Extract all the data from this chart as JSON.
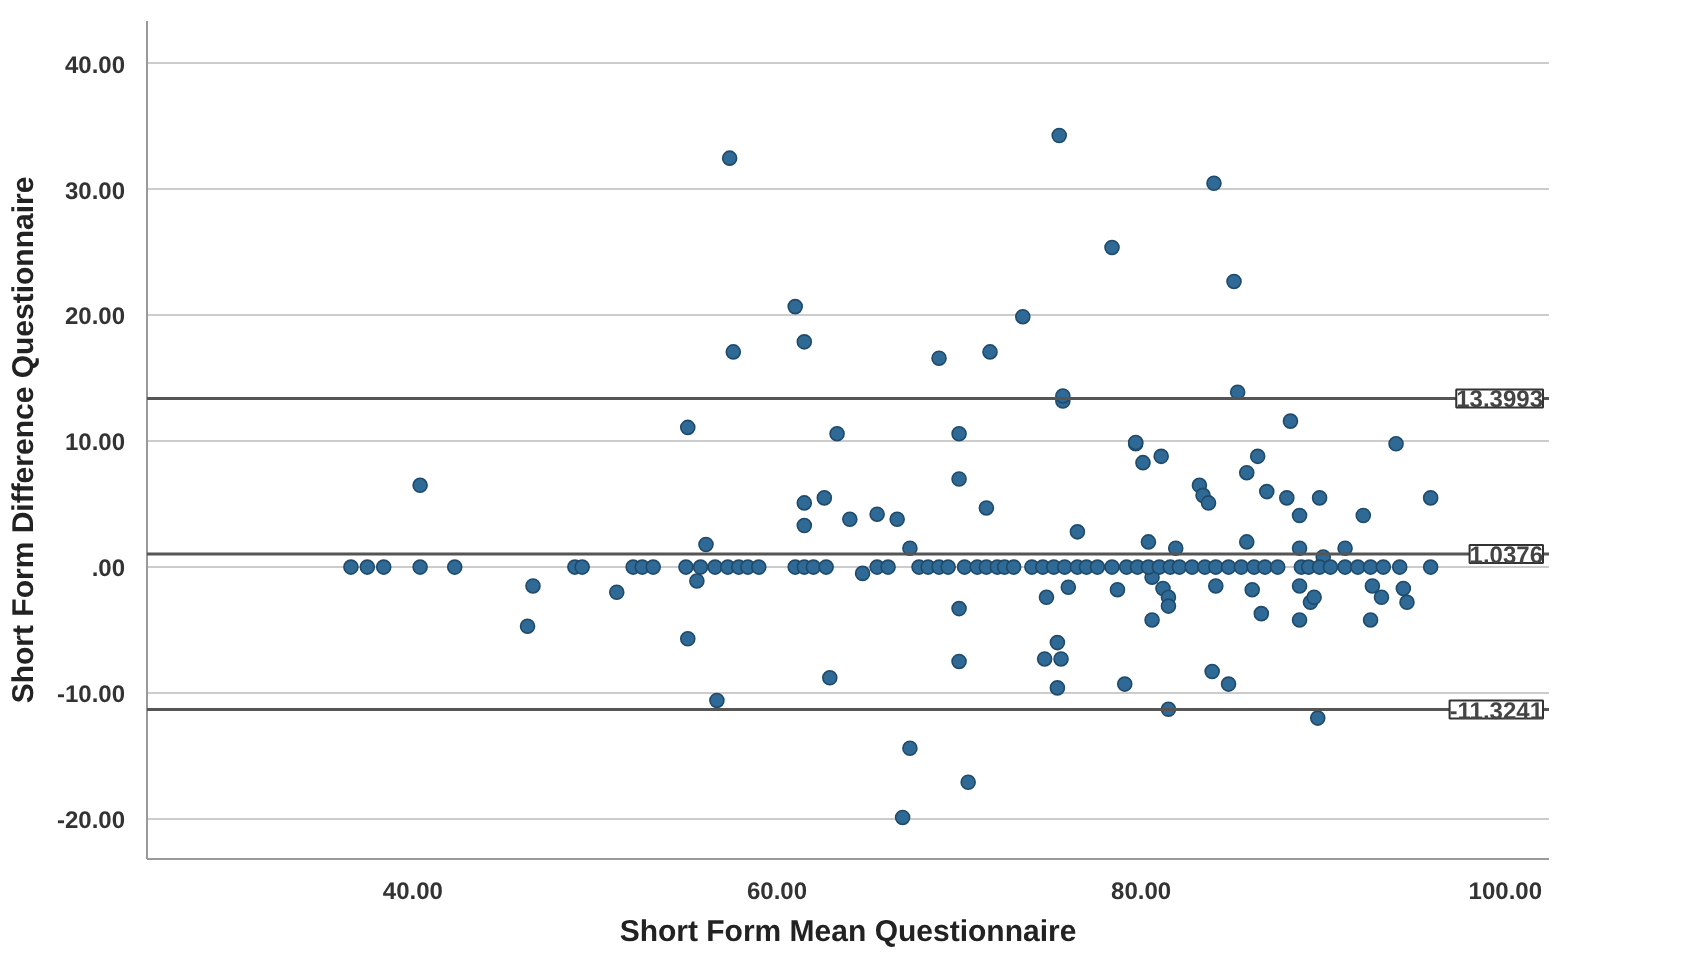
{
  "chart_data": {
    "type": "scatter",
    "xlabel": "Short Form Mean Questionnaire",
    "ylabel": "Short Form Difference Questionnaire",
    "xlim": [
      25.4,
      102.4
    ],
    "ylim": [
      -23.2,
      43.4
    ],
    "xticks": [
      {
        "value": 40,
        "label": "40.00"
      },
      {
        "value": 60,
        "label": "60.00"
      },
      {
        "value": 80,
        "label": "80.00"
      },
      {
        "value": 100,
        "label": "100.00"
      }
    ],
    "yticks": [
      {
        "value": -20,
        "label": "-20.00"
      },
      {
        "value": -10,
        "label": "-10.00"
      },
      {
        "value": 0,
        "label": ".00"
      },
      {
        "value": 10,
        "label": "10.00"
      },
      {
        "value": 20,
        "label": "20.00"
      },
      {
        "value": 30,
        "label": "30.00"
      },
      {
        "value": 40,
        "label": "40.00"
      }
    ],
    "grid": "y",
    "marker": "circle",
    "series": [
      {
        "color": "#2f6a96",
        "x": [
          57.4,
          57.6,
          61.0,
          55.1,
          75.5,
          84.0,
          78.4,
          85.1,
          61.5,
          68.9,
          71.7,
          73.5,
          75.7,
          75.7,
          85.3,
          88.2,
          63.3,
          70.0,
          79.7,
          94.0,
          70.0,
          61.5,
          61.5,
          62.6,
          64.0,
          65.5,
          66.6,
          67.3,
          71.5,
          76.5,
          79.7,
          80.1,
          81.1,
          83.2,
          83.4,
          83.7,
          86.4,
          85.8,
          86.9,
          88.0,
          88.7,
          89.8,
          92.2,
          95.9,
          80.4,
          85.8,
          81.9,
          88.7,
          91.2,
          90.0,
          64.7,
          70.0,
          74.8,
          76.0,
          78.7,
          80.6,
          81.2,
          81.5,
          81.5,
          80.6,
          84.1,
          86.1,
          86.6,
          88.7,
          88.7,
          89.3,
          89.5,
          92.6,
          92.7,
          93.2,
          94.4,
          94.6,
          70.0,
          75.4,
          74.7,
          75.6,
          75.4,
          62.9,
          79.1,
          83.9,
          84.8,
          81.5,
          89.7,
          67.3,
          70.5,
          66.9,
          40.4,
          36.6,
          37.5,
          38.4,
          40.4,
          42.3,
          46.3,
          46.6,
          48.9,
          49.3,
          51.2,
          52.1,
          52.6,
          53.2,
          55.1,
          56.1,
          55.6,
          55.0,
          55.8,
          56.6,
          57.3,
          57.9,
          58.4,
          59.0,
          56.7,
          61.0,
          61.5,
          62.0,
          62.7,
          65.5,
          66.1,
          67.8,
          68.3,
          68.9,
          69.4,
          70.3,
          71.0,
          71.5,
          72.1,
          72.5,
          73.0,
          74.0,
          74.6,
          75.2,
          75.8,
          76.5,
          77.0,
          77.6,
          78.4,
          79.2,
          79.8,
          80.4,
          81.0,
          81.6,
          82.1,
          82.8,
          83.5,
          84.1,
          84.8,
          85.5,
          86.2,
          86.8,
          87.5,
          88.8,
          89.2,
          89.8,
          90.4,
          91.2,
          91.9,
          92.6,
          93.3,
          94.2,
          95.9
        ],
        "values": [
          32.5,
          17.1,
          20.7,
          11.1,
          34.3,
          30.5,
          25.4,
          22.7,
          17.9,
          16.6,
          17.1,
          19.9,
          13.2,
          13.6,
          13.9,
          11.6,
          10.6,
          10.6,
          9.8,
          9.8,
          7.0,
          5.1,
          3.3,
          5.5,
          3.8,
          4.2,
          3.8,
          1.5,
          4.7,
          2.8,
          9.9,
          8.3,
          8.8,
          6.5,
          5.7,
          5.1,
          8.8,
          7.5,
          6.0,
          5.5,
          4.1,
          5.5,
          4.1,
          5.5,
          2.0,
          2.0,
          1.5,
          1.5,
          1.5,
          0.8,
          -0.5,
          -3.3,
          -2.4,
          -1.6,
          -1.8,
          -0.8,
          -1.7,
          -2.4,
          -3.1,
          -4.2,
          -1.5,
          -1.8,
          -3.7,
          -4.2,
          -1.5,
          -2.8,
          -2.4,
          -4.2,
          -1.5,
          -2.4,
          -1.7,
          -2.8,
          -7.5,
          -6.0,
          -7.3,
          -7.3,
          -9.6,
          -8.8,
          -9.3,
          -8.3,
          -9.3,
          -11.3,
          -12.0,
          -14.4,
          -17.1,
          -19.9,
          6.5,
          0,
          0,
          0,
          0,
          0,
          -4.7,
          -1.5,
          0,
          0,
          -2.0,
          0,
          0,
          0,
          -5.7,
          1.8,
          -1.1,
          0,
          0,
          0,
          0,
          0,
          0,
          0,
          -10.6,
          0,
          0,
          0,
          0,
          0,
          0,
          0,
          0,
          0,
          0,
          0,
          0,
          0,
          0,
          0,
          0,
          0,
          0,
          0,
          0,
          0,
          0,
          0,
          0,
          0,
          0,
          0,
          0,
          0,
          0,
          0,
          0,
          0,
          0,
          0,
          0,
          0,
          0,
          0,
          0,
          0,
          0,
          0,
          0,
          0,
          0,
          0,
          0
        ]
      }
    ],
    "ref_lines": [
      {
        "axis": "y",
        "value": 13.3993,
        "label": "13.3993",
        "color": "#555555"
      },
      {
        "axis": "y",
        "value": 1.0376,
        "label": "1.0376",
        "color": "#555555"
      },
      {
        "axis": "y",
        "value": -11.3241,
        "label": "-11.3241",
        "color": "#555555"
      }
    ]
  }
}
